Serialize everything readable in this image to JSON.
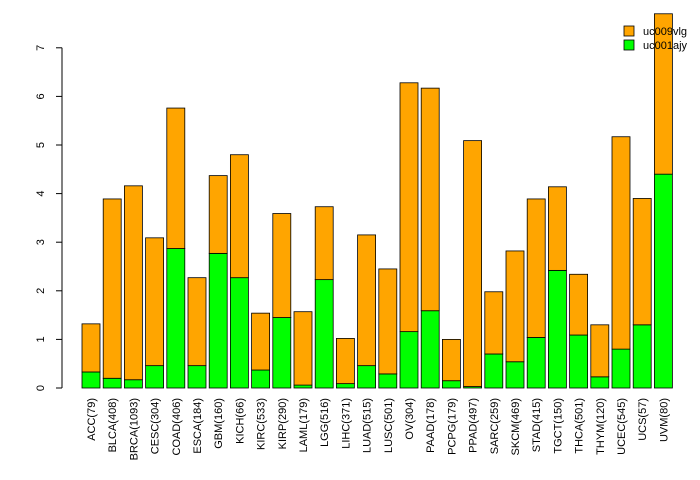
{
  "chart_data": {
    "type": "bar",
    "stacked": true,
    "categories": [
      "ACC(79)",
      "BLCA(408)",
      "BRCA(1093)",
      "CESC(304)",
      "COAD(406)",
      "ESCA(184)",
      "GBM(160)",
      "KICH(66)",
      "KIRC(533)",
      "KIRP(290)",
      "LAML(179)",
      "LGG(516)",
      "LIHC(371)",
      "LUAD(515)",
      "LUSC(501)",
      "OV(304)",
      "PAAD(178)",
      "PCPG(179)",
      "PPAD(497)",
      "SARC(259)",
      "SKCM(469)",
      "STAD(415)",
      "TGCT(150)",
      "THCA(501)",
      "THYM(120)",
      "UCEC(545)",
      "UCS(57)",
      "UVM(80)"
    ],
    "series": [
      {
        "name": "uc001ajy",
        "color": "#00ff00",
        "values": [
          0.33,
          0.2,
          0.17,
          0.46,
          2.87,
          0.46,
          2.77,
          2.27,
          0.37,
          1.45,
          0.06,
          2.23,
          0.09,
          0.46,
          0.29,
          1.16,
          1.59,
          0.15,
          0.03,
          0.7,
          0.54,
          1.04,
          2.42,
          1.09,
          0.23,
          0.8,
          1.3,
          4.4
        ]
      },
      {
        "name": "uc009vlg",
        "color": "#ffa500",
        "values": [
          0.99,
          3.69,
          3.99,
          2.63,
          2.89,
          1.81,
          1.6,
          2.53,
          1.17,
          2.14,
          1.51,
          1.5,
          0.93,
          2.69,
          2.16,
          5.12,
          4.58,
          0.85,
          5.06,
          1.28,
          2.28,
          2.85,
          1.72,
          1.25,
          1.07,
          4.37,
          2.6,
          3.3
        ]
      }
    ],
    "yticks": [
      0,
      1,
      2,
      3,
      4,
      5,
      6,
      7
    ],
    "ylim": [
      0,
      7.75
    ],
    "legend_position": "top-right",
    "grid": false
  }
}
